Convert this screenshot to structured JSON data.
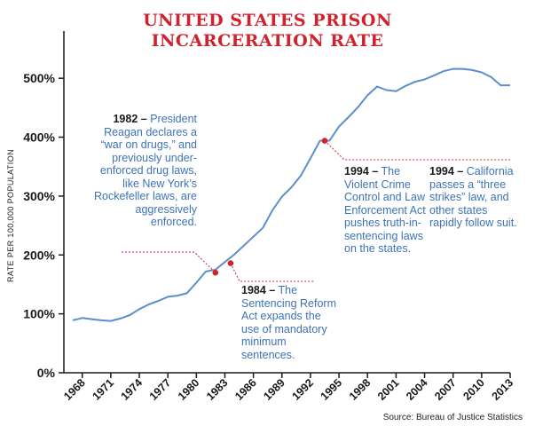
{
  "title_line1": "UNITED STATES PRISON",
  "title_line2": "INCARCERATION RATE",
  "source": "Source: Bureau of Justice Statistics",
  "colors": {
    "title": "#d0222d",
    "line": "#5b8fcc",
    "marker": "#d0222d",
    "annotation": "#3d73b7"
  },
  "annotations": [
    {
      "year_label": "1982 –",
      "text": "President Reagan declares a “war on drugs,” and previously under-enforced drug laws, like New York’s Rockefeller laws, are aggressively enforced."
    },
    {
      "year_label": "1984 –",
      "text": "The Sentencing Reform Act expands the use of mandatory minimum sentences."
    },
    {
      "year_label": "1994 –",
      "text": "The Violent Crime Control and Law Enforcement Act pushes truth-in-sentencing laws on the states."
    },
    {
      "year_label": "1994 –",
      "text": "California passes a “three strikes” law, and other states rapidly follow suit."
    }
  ],
  "chart_data": {
    "type": "line",
    "title": "UNITED STATES PRISON INCARCERATION RATE",
    "xlabel": "",
    "ylabel": "RATE PER 100,000 POPULATION",
    "x_ticks": [
      "1968",
      "1971",
      "1974",
      "1977",
      "1980",
      "1983",
      "1986",
      "1989",
      "1992",
      "1995",
      "1998",
      "2001",
      "2004",
      "2007",
      "2010",
      "2013"
    ],
    "y_ticks": [
      "0%",
      "100%",
      "200%",
      "300%",
      "400%",
      "500%"
    ],
    "xlim": [
      1967,
      2013
    ],
    "ylim": [
      0,
      550
    ],
    "grid": false,
    "series": [
      {
        "x": [
          1967,
          1968,
          1969,
          1970,
          1971,
          1972,
          1973,
          1974,
          1975,
          1976,
          1977,
          1978,
          1979,
          1980,
          1981,
          1982,
          1983,
          1984,
          1985,
          1986,
          1987,
          1988,
          1989,
          1990,
          1991,
          1992,
          1993,
          1994,
          1995,
          1996,
          1997,
          1998,
          1999,
          2000,
          2001,
          2002,
          2003,
          2004,
          2005,
          2006,
          2007,
          2008,
          2009,
          2010,
          2011,
          2012,
          2013
        ],
        "y": [
          89,
          93,
          91,
          89,
          88,
          92,
          98,
          108,
          116,
          122,
          129,
          131,
          135,
          153,
          172,
          175,
          188,
          201,
          216,
          231,
          246,
          276,
          299,
          315,
          335,
          364,
          394,
          394,
          418,
          434,
          451,
          471,
          486,
          480,
          478,
          487,
          494,
          498,
          505,
          512,
          516,
          516,
          514,
          510,
          502,
          488,
          488
        ]
      }
    ],
    "markers": [
      {
        "x": 1982,
        "y": 170
      },
      {
        "x": 1983.6,
        "y": 186
      },
      {
        "x": 1993.5,
        "y": 394
      }
    ]
  }
}
